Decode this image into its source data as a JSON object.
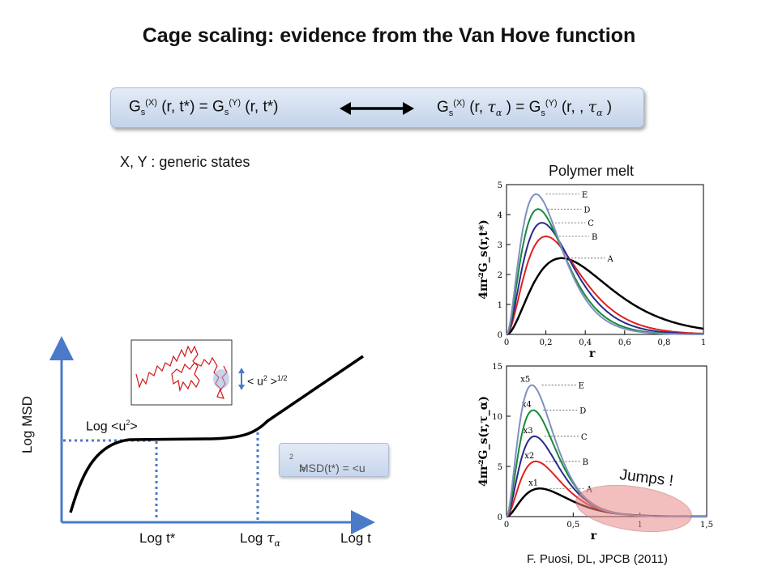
{
  "title": "Cage scaling:  evidence from the Van Hove function",
  "formula": {
    "left": {
      "g": "G",
      "s": "s",
      "x": "(X)",
      "a": " (r, t*) = G",
      "s2": "s",
      "y": "(Y)",
      "b": " (r, t*)"
    },
    "right": {
      "g": "G",
      "s": "s",
      "x": "(X)",
      "a": " (r, ",
      "tau1": "τ",
      "al1": "α",
      "b": " ) = G",
      "s2": "s",
      "y": "(Y)",
      "c": " (r, , ",
      "tau2": "τ",
      "al2": "α",
      "d": " )"
    }
  },
  "states_note": "X, Y : generic states",
  "polymer_label": "Polymer melt",
  "citation": "F. Puosi, DL, JPCB (2011)",
  "sketch": {
    "y_axis_label": "Log MSD",
    "x_axis_label": "Log t",
    "tstar_label": "Log t*",
    "tau_label_prefix": "Log ",
    "tau_symbol": "τ",
    "tau_sub": "α",
    "plateau_label_prefix": "Log <u",
    "plateau_label_exp": "2",
    "plateau_label_suffix": ">",
    "u2_label_prefix": "< u",
    "u2_label_exp": "2",
    "u2_label_mid": " >",
    "u2_label_exp2": "1/2",
    "msd_box_prefix": "MSD(t*) = <u",
    "msd_box_exp": "2",
    "msd_box_suffix": ">"
  },
  "jumps_label": "Jumps !",
  "chart_data": [
    {
      "type": "line",
      "ylabel": "4πr²G_s(r,t*)",
      "xlabel": "r",
      "xlim": [
        0,
        1
      ],
      "ylim": [
        0,
        5.5
      ],
      "xticks": [
        "0",
        "0,2",
        "0,4",
        "0,6",
        "0,8",
        "1"
      ],
      "yticks": [
        "0",
        "1",
        "2",
        "3",
        "4",
        "5"
      ],
      "series": [
        {
          "name": "A",
          "color": "#000000",
          "peak_r": 0.28,
          "peak_value": 2.8
        },
        {
          "name": "B",
          "color": "#e02020",
          "peak_r": 0.2,
          "peak_value": 3.6
        },
        {
          "name": "C",
          "color": "#2a2a8a",
          "peak_r": 0.18,
          "peak_value": 4.1
        },
        {
          "name": "D",
          "color": "#1a8a3a",
          "peak_r": 0.16,
          "peak_value": 4.6
        },
        {
          "name": "E",
          "color": "#8090c0",
          "peak_r": 0.15,
          "peak_value": 5.15
        }
      ]
    },
    {
      "type": "line",
      "ylabel": "4πr²G_s(r,τ_α)",
      "xlabel": "r",
      "xlim": [
        0,
        1.5
      ],
      "ylim": [
        0,
        15
      ],
      "xticks": [
        "0",
        "0,5",
        "1",
        "1,5"
      ],
      "yticks": [
        "0",
        "5",
        "10",
        "15"
      ],
      "series": [
        {
          "name": "A",
          "multiplier": "x1",
          "color": "#000000",
          "peak_r": 0.25,
          "peak_value": 2.8
        },
        {
          "name": "B",
          "multiplier": "x2",
          "color": "#e02020",
          "peak_r": 0.22,
          "peak_value": 5.5
        },
        {
          "name": "C",
          "multiplier": "x3",
          "color": "#2a2a8a",
          "peak_r": 0.21,
          "peak_value": 8.0
        },
        {
          "name": "D",
          "multiplier": "x4",
          "color": "#1a8a3a",
          "peak_r": 0.2,
          "peak_value": 10.6
        },
        {
          "name": "E",
          "multiplier": "x5",
          "color": "#8090c0",
          "peak_r": 0.19,
          "peak_value": 13.1
        }
      ]
    }
  ]
}
